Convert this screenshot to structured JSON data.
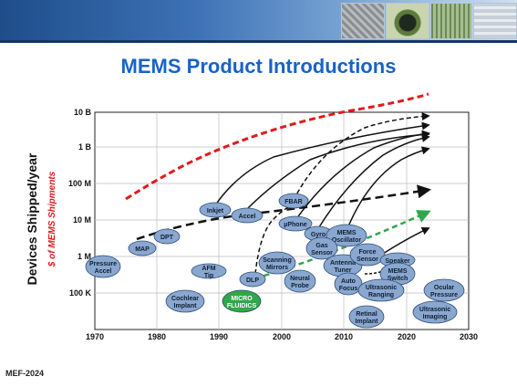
{
  "slide": {
    "title": "MEMS Product Introductions",
    "footer": "MEF-2024",
    "banner_images": [
      "chip-photo",
      "mems-device-photo",
      "circuit-board-photo",
      "microstructure-photo"
    ]
  },
  "chart_data": {
    "type": "scatter",
    "title": "MEMS Product Introductions",
    "ylabel": "Devices Shipped/year",
    "ylabel2": "$ of MEMS Shipments",
    "x_ticks": [
      "1970",
      "1980",
      "1990",
      "2000",
      "2010",
      "2020",
      "2030"
    ],
    "y_ticks": [
      "100 K",
      "1 M",
      "10 M",
      "100 M",
      "1 B",
      "10 B"
    ],
    "products": [
      {
        "label": "Pressure Accel",
        "year": 1971,
        "shipments": "800K",
        "color": "#8aa7cf"
      },
      {
        "label": "MAP",
        "year": 1977,
        "shipments": "1.5M",
        "color": "#8aa7cf"
      },
      {
        "label": "DPT",
        "year": 1982,
        "shipments": "2.5M",
        "color": "#8aa7cf"
      },
      {
        "label": "Cochlear Implant",
        "year": 1985,
        "shipments": "60K",
        "color": "#8aa7cf"
      },
      {
        "label": "AFM Tip",
        "year": 1988,
        "shipments": "600K",
        "color": "#8aa7cf"
      },
      {
        "label": "Inkjet",
        "year": 1990,
        "shipments": "20M",
        "color": "#8aa7cf"
      },
      {
        "label": "Accel",
        "year": 1994,
        "shipments": "15M",
        "color": "#8aa7cf"
      },
      {
        "label": "MICRO FLUIDICS",
        "year": 1993,
        "shipments": "60K",
        "color": "#2ea84a"
      },
      {
        "label": "DLP",
        "year": 1995,
        "shipments": "400K",
        "color": "#8aa7cf"
      },
      {
        "label": "FBAR",
        "year": 2002,
        "shipments": "30M",
        "color": "#8aa7cf"
      },
      {
        "label": "µPhone",
        "year": 2002,
        "shipments": "10M",
        "color": "#8aa7cf"
      },
      {
        "label": "Scanning Mirrors",
        "year": 2000,
        "shipments": "700K",
        "color": "#8aa7cf"
      },
      {
        "label": "Neural Probe",
        "year": 2003,
        "shipments": "300K",
        "color": "#8aa7cf"
      },
      {
        "label": "Gyro",
        "year": 2006,
        "shipments": "6M",
        "color": "#8aa7cf"
      },
      {
        "label": "MEMS Oscillator",
        "year": 2010,
        "shipments": "5M",
        "color": "#8aa7cf"
      },
      {
        "label": "Gas Sensor",
        "year": 2007,
        "shipments": "2.5M",
        "color": "#8aa7cf"
      },
      {
        "label": "Antenna Tuner",
        "year": 2010,
        "shipments": "900K",
        "color": "#8aa7cf"
      },
      {
        "label": "Auto Focus",
        "year": 2011,
        "shipments": "250K",
        "color": "#8aa7cf"
      },
      {
        "label": "Force Sensor",
        "year": 2014,
        "shipments": "1.5M",
        "color": "#8aa7cf"
      },
      {
        "label": "Speaker",
        "year": 2019,
        "shipments": "1.2M",
        "color": "#8aa7cf"
      },
      {
        "label": "MEMS Switch",
        "year": 2019,
        "shipments": "500K",
        "color": "#8aa7cf"
      },
      {
        "label": "Ultrasonic Ranging",
        "year": 2016,
        "shipments": "150K",
        "color": "#8aa7cf"
      },
      {
        "label": "Retinal Implant",
        "year": 2014,
        "shipments": "25K",
        "color": "#8aa7cf"
      },
      {
        "label": "Ocular Pressure",
        "year": 2026,
        "shipments": "100K",
        "color": "#8aa7cf"
      },
      {
        "label": "Ultrasonic Imaging",
        "year": 2025,
        "shipments": "30K",
        "color": "#8aa7cf"
      }
    ],
    "trend_lines": [
      {
        "name": "$ of MEMS Shipments",
        "color": "#e3191c",
        "style": "dashed"
      },
      {
        "name": "",
        "color": "#111111",
        "style": "dashed"
      },
      {
        "name": "",
        "color": "#2fa84d",
        "style": "dashed"
      }
    ],
    "xlim": [
      1970,
      2030
    ],
    "grid": true,
    "scale_y": "log"
  }
}
